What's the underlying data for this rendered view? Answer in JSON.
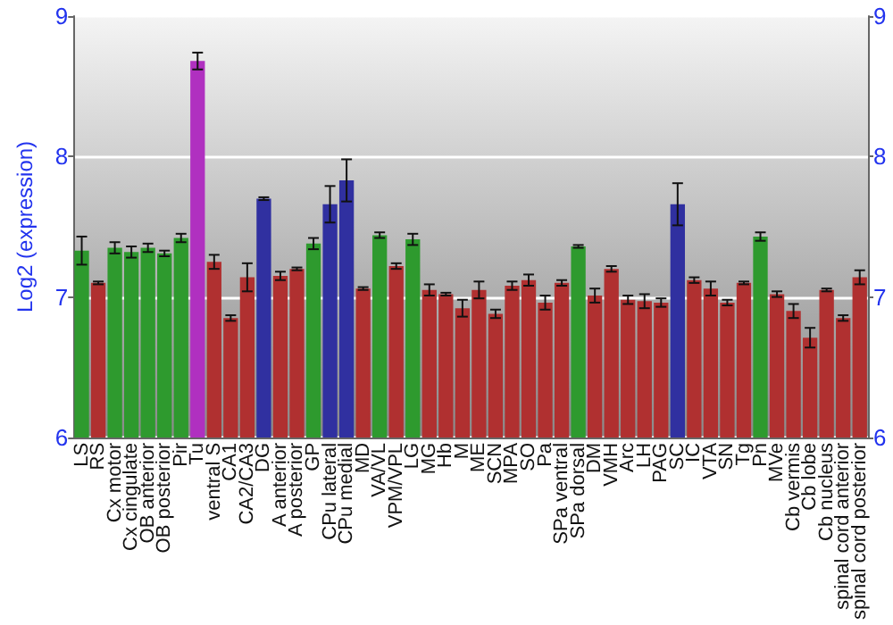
{
  "chart_data": {
    "type": "bar",
    "ylabel": "Log2 (expression)",
    "categories": [
      "LS",
      "RS",
      "Cx motor",
      "Cx cingulate",
      "OB anterior",
      "OB posterior",
      "Pir",
      "Tu",
      "ventral S",
      "CA1",
      "CA2/CA3",
      "DG",
      "A anterior",
      "A posterior",
      "GP",
      "CPu lateral",
      "CPu medial",
      "MD",
      "VA/VL",
      "VPM/VPL",
      "LG",
      "MG",
      "Hb",
      "M",
      "ME",
      "SCN",
      "MPA",
      "SO",
      "Pa",
      "SPa ventral",
      "SPa dorsal",
      "DM",
      "VMH",
      "Arc",
      "LH",
      "PAG",
      "SC",
      "IC",
      "VTA",
      "SN",
      "Tg",
      "Pn",
      "MVe",
      "Cb vermis",
      "Cb lobe",
      "Cb nucleus",
      "spinal cord anterior",
      "spinal cord posterior"
    ],
    "values": [
      7.33,
      7.1,
      7.35,
      7.32,
      7.35,
      7.31,
      7.42,
      8.68,
      7.25,
      6.85,
      7.14,
      7.7,
      7.15,
      7.2,
      7.38,
      7.66,
      7.83,
      7.06,
      7.44,
      7.22,
      7.41,
      7.05,
      7.02,
      6.92,
      7.05,
      6.88,
      7.08,
      7.12,
      6.96,
      7.1,
      7.36,
      7.01,
      7.2,
      6.98,
      6.97,
      6.96,
      7.66,
      7.12,
      7.06,
      6.96,
      7.1,
      7.43,
      7.02,
      6.9,
      6.71,
      7.05,
      6.85,
      7.14
    ],
    "errors": [
      0.1,
      0.01,
      0.04,
      0.04,
      0.03,
      0.02,
      0.03,
      0.06,
      0.05,
      0.02,
      0.1,
      0.01,
      0.03,
      0.01,
      0.04,
      0.13,
      0.15,
      0.01,
      0.02,
      0.02,
      0.04,
      0.04,
      0.01,
      0.06,
      0.06,
      0.03,
      0.03,
      0.04,
      0.05,
      0.02,
      0.01,
      0.05,
      0.02,
      0.03,
      0.05,
      0.03,
      0.15,
      0.02,
      0.05,
      0.02,
      0.01,
      0.03,
      0.02,
      0.05,
      0.07,
      0.01,
      0.02,
      0.05
    ],
    "colors": [
      "#2e9a2e",
      "#b03030",
      "#2e9a2e",
      "#2e9a2e",
      "#2e9a2e",
      "#2e9a2e",
      "#2e9a2e",
      "#b030c0",
      "#b03030",
      "#b03030",
      "#b03030",
      "#3030a0",
      "#b03030",
      "#b03030",
      "#2e9a2e",
      "#3030a0",
      "#3030a0",
      "#b03030",
      "#2e9a2e",
      "#b03030",
      "#2e9a2e",
      "#b03030",
      "#b03030",
      "#b03030",
      "#b03030",
      "#b03030",
      "#b03030",
      "#b03030",
      "#b03030",
      "#b03030",
      "#2e9a2e",
      "#b03030",
      "#b03030",
      "#b03030",
      "#b03030",
      "#b03030",
      "#3030a0",
      "#b03030",
      "#b03030",
      "#b03030",
      "#b03030",
      "#2e9a2e",
      "#b03030",
      "#b03030",
      "#b03030",
      "#b03030",
      "#b03030",
      "#b03030"
    ],
    "ylim": [
      6,
      9
    ],
    "yticks": [
      6,
      7,
      8,
      9
    ],
    "y2lim": [
      6,
      9
    ],
    "y2ticks": [
      6,
      7,
      8,
      9
    ],
    "grid": "y"
  }
}
